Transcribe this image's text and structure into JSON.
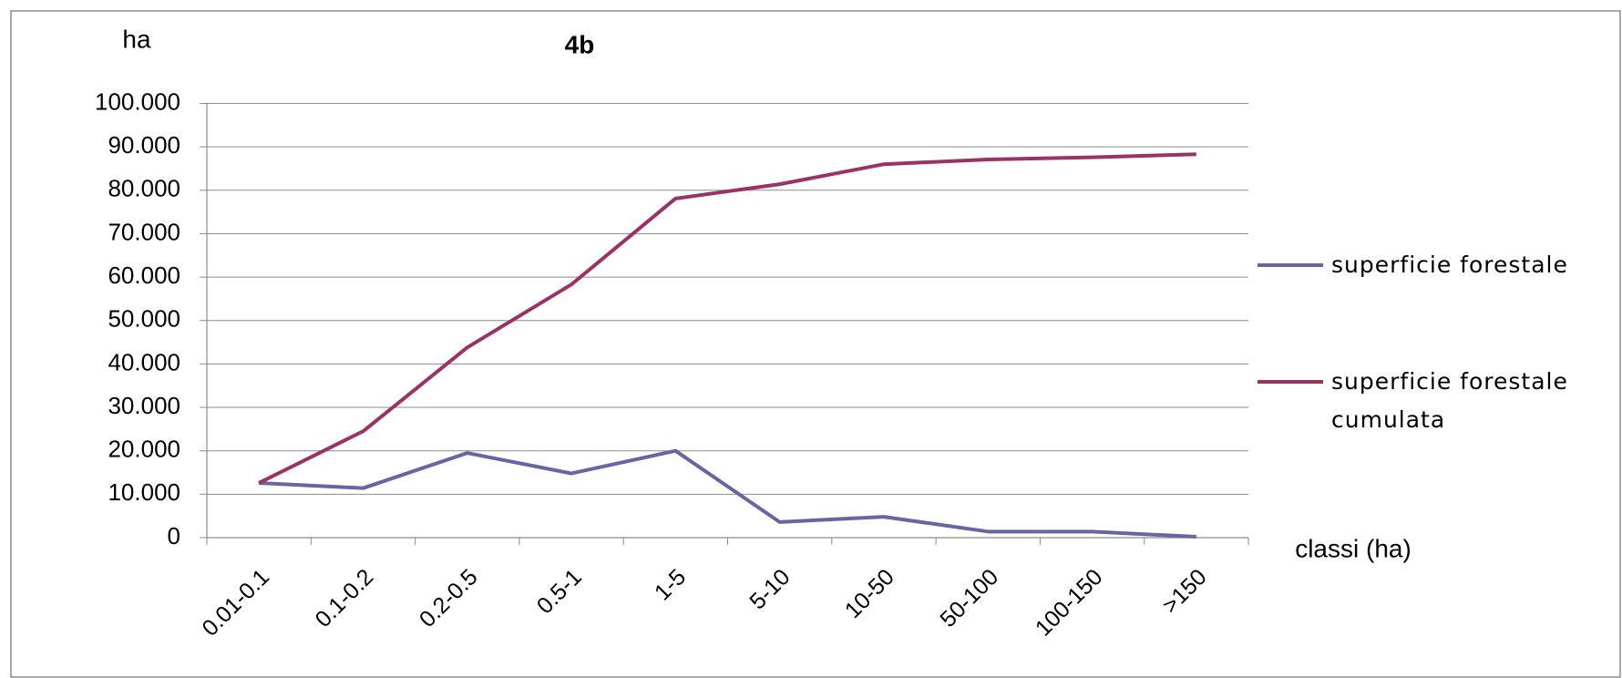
{
  "chart_data": {
    "type": "line",
    "title": "4b",
    "y_axis_label": "ha",
    "x_axis_label": "classi (ha)",
    "categories": [
      "0.01-0.1",
      "0.1-0.2",
      "0.2-0.5",
      "0.5-1",
      "1-5",
      "5-10",
      "10-50",
      "50-100",
      "100-150",
      ">150"
    ],
    "series": [
      {
        "name": "superficie forestale",
        "color": "#6666a3",
        "values": [
          12600,
          11400,
          19500,
          14800,
          20000,
          3600,
          4800,
          1400,
          1400,
          200
        ]
      },
      {
        "name": "superficie forestale cumulata",
        "color": "#993366",
        "values": [
          12600,
          24500,
          43800,
          58300,
          78100,
          81400,
          86000,
          87100,
          87600,
          88300
        ]
      }
    ],
    "ylim": [
      0,
      100000
    ],
    "yticks": [
      0,
      {
        "value": 10000,
        "label": "10.000"
      },
      {
        "value": 20000,
        "label": "20.000"
      },
      {
        "value": 30000,
        "label": "30.000"
      },
      {
        "value": 40000,
        "label": "40.000"
      },
      {
        "value": 50000,
        "label": "50.000"
      },
      {
        "value": 60000,
        "label": "60.000"
      },
      {
        "value": 70000,
        "label": "70.000"
      },
      {
        "value": 80000,
        "label": "80.000"
      },
      {
        "value": 90000,
        "label": "90.000"
      },
      {
        "value": 100000,
        "label": "100.000"
      }
    ],
    "grid": true,
    "legend": "right"
  }
}
